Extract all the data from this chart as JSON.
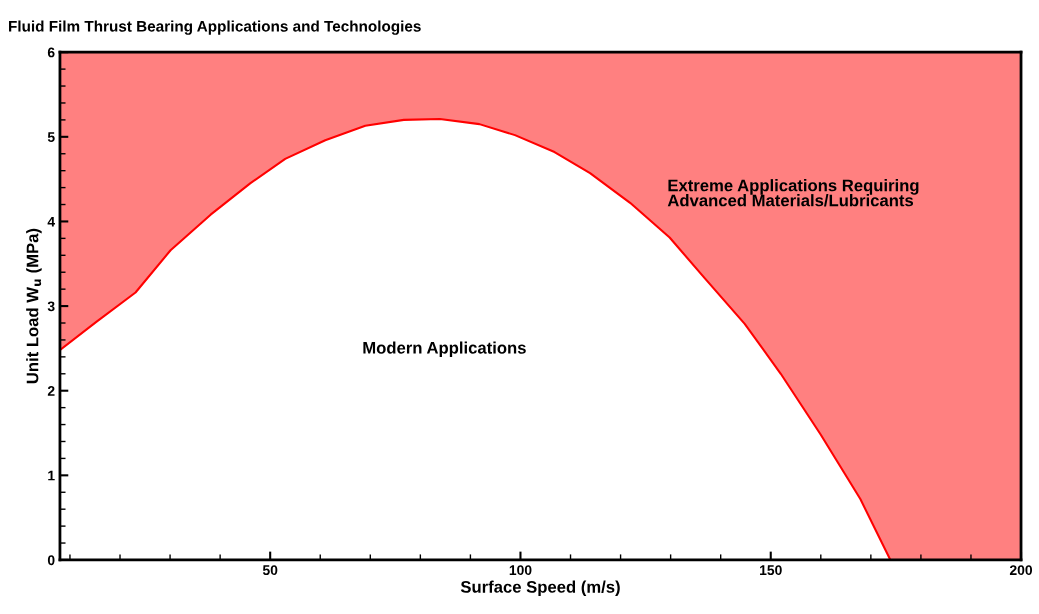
{
  "chart_data": {
    "type": "area",
    "title": "Fluid Film Thrust Bearing Applications and Technologies",
    "xlabel": "Surface Speed (m/s)",
    "ylabel": "Unit Load W$_{u}$ (MPa)",
    "annotations": [
      "Modern Applications",
      "Extreme Applications Requiring\nAdvanced Materials/Lubricants"
    ],
    "series": [
      {
        "color": "#ff0000",
        "x": [
          8,
          15.2,
          23.1,
          30.1,
          38.1,
          46.0,
          53.0,
          61.0,
          69.0,
          76.7,
          83.9,
          91.8,
          98.9,
          106.8,
          113.9,
          121.9,
          129.8,
          136.8,
          144.8,
          152.0,
          160.0,
          167.9,
          173.9
        ],
        "values": [
          2.48,
          2.81,
          3.16,
          3.66,
          4.08,
          4.45,
          4.74,
          4.96,
          5.13,
          5.2,
          5.21,
          5.15,
          5.02,
          4.82,
          4.57,
          4.22,
          3.81,
          3.33,
          2.79,
          2.2,
          1.48,
          0.72,
          0
        ]
      }
    ],
    "bands": [
      {
        "axis": "y",
        "from": 0,
        "to": 6,
        "color": "#ff8080"
      }
    ],
    "xlim": [
      8,
      200
    ],
    "ylim": [
      0,
      6
    ],
    "xticks": [
      50,
      100,
      150,
      200
    ],
    "yticks": [
      0,
      1,
      2,
      3,
      4,
      5,
      6
    ],
    "grid": false,
    "legend": false
  }
}
